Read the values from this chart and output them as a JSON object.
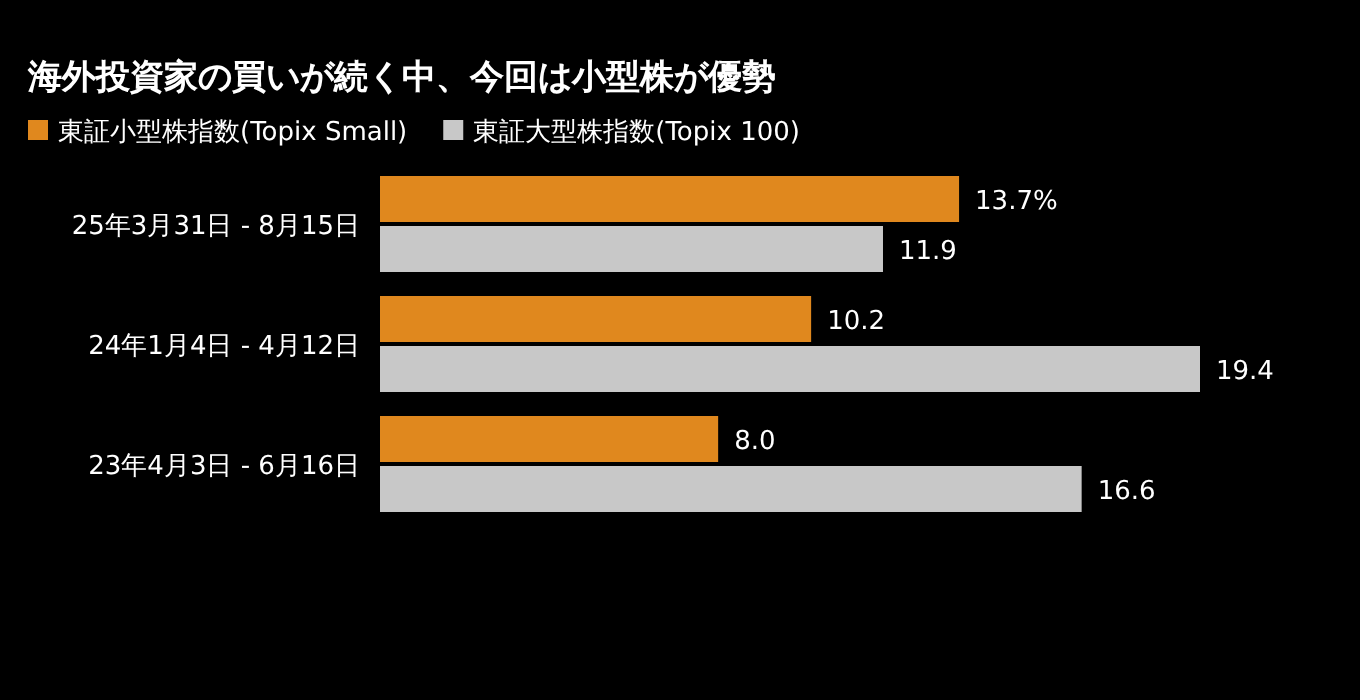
{
  "chart_data": {
    "type": "bar",
    "orientation": "horizontal",
    "title": "海外投資家の買いが続く中、今回は小型株が優勢",
    "categories": [
      "25年3月31日 - 8月15日",
      "24年1月4日 - 4月12日",
      "23年4月3日 - 6月16日"
    ],
    "series": [
      {
        "name": "東証小型株指数(Topix Small)",
        "color": "#e0881e",
        "values": [
          13.7,
          10.2,
          8.0
        ],
        "value_labels": [
          "13.7%",
          "10.2",
          "8.0"
        ]
      },
      {
        "name": "東証大型株指数(Topix 100)",
        "color": "#c8c8c8",
        "values": [
          11.9,
          19.4,
          16.6
        ],
        "value_labels": [
          "11.9",
          "19.4",
          "16.6"
        ]
      }
    ],
    "legend": "top left"
  }
}
